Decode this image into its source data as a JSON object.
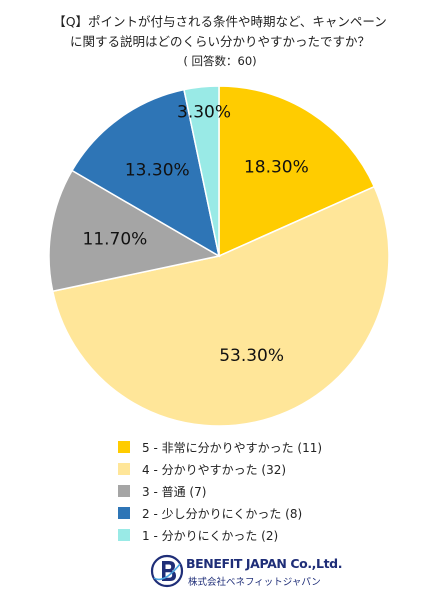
{
  "title": {
    "line1": "【Q】ポイントが付与される条件や時期など、キャンペーン",
    "line2": "に関する説明はどのくらい分かりやすかったですか？",
    "line3": "( 回答数：60)"
  },
  "chart_data": {
    "type": "pie",
    "start": "12 o'clock, clockwise",
    "slices": [
      {
        "label": "5 - 非常に分かりやすかった (11)",
        "value": 18.3,
        "value_label": "18.30%",
        "color": "#ffcc00"
      },
      {
        "label": "4 - 分かりやすかった (32)",
        "value": 53.3,
        "value_label": "53.30%",
        "color": "#ffe699"
      },
      {
        "label": "3 - 普通 (7)",
        "value": 11.7,
        "value_label": "11.70%",
        "color": "#a5a5a5"
      },
      {
        "label": "2 - 少し分かりにくかった (8)",
        "value": 13.3,
        "value_label": "13.30%",
        "color": "#2e75b6"
      },
      {
        "label": "1 - 分かりにくかった (2)",
        "value": 3.3,
        "value_label": "3.30%",
        "color": "#99eae6"
      }
    ],
    "legend_position": "bottom"
  },
  "logo": {
    "name": "BENEFIT JAPAN Co.,Ltd.",
    "sub": "株式会社ベネフィットジャパン"
  }
}
